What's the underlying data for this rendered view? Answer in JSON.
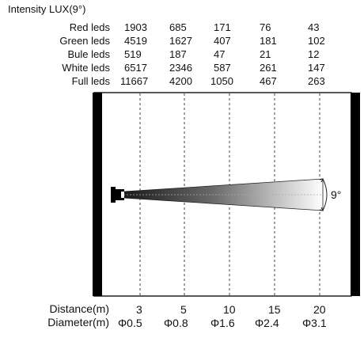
{
  "title": "Intensity LUX(9°)",
  "rows": [
    {
      "label": "Red leds",
      "values": [
        "1903",
        "685",
        "171",
        "76",
        "43"
      ]
    },
    {
      "label": "Green leds",
      "values": [
        "4519",
        "1627",
        "407",
        "181",
        "102"
      ]
    },
    {
      "label": "Bule leds",
      "values": [
        "519",
        "187",
        "47",
        "21",
        "12"
      ]
    },
    {
      "label": "White leds",
      "values": [
        "6517",
        "2346",
        "587",
        "261",
        "147"
      ]
    },
    {
      "label": "Full leds",
      "values": [
        "11667",
        "4200",
        "1050",
        "467",
        "263"
      ]
    }
  ],
  "beam_angle": "9°",
  "distance_label": "Distance(m)",
  "diameter_label": "Diameter(m)",
  "distances": [
    "3",
    "5",
    "10",
    "15",
    "20"
  ],
  "diameters": [
    "Φ0.5",
    "Φ0.8",
    "Φ1.6",
    "Φ2.4",
    "Φ3.1"
  ]
}
